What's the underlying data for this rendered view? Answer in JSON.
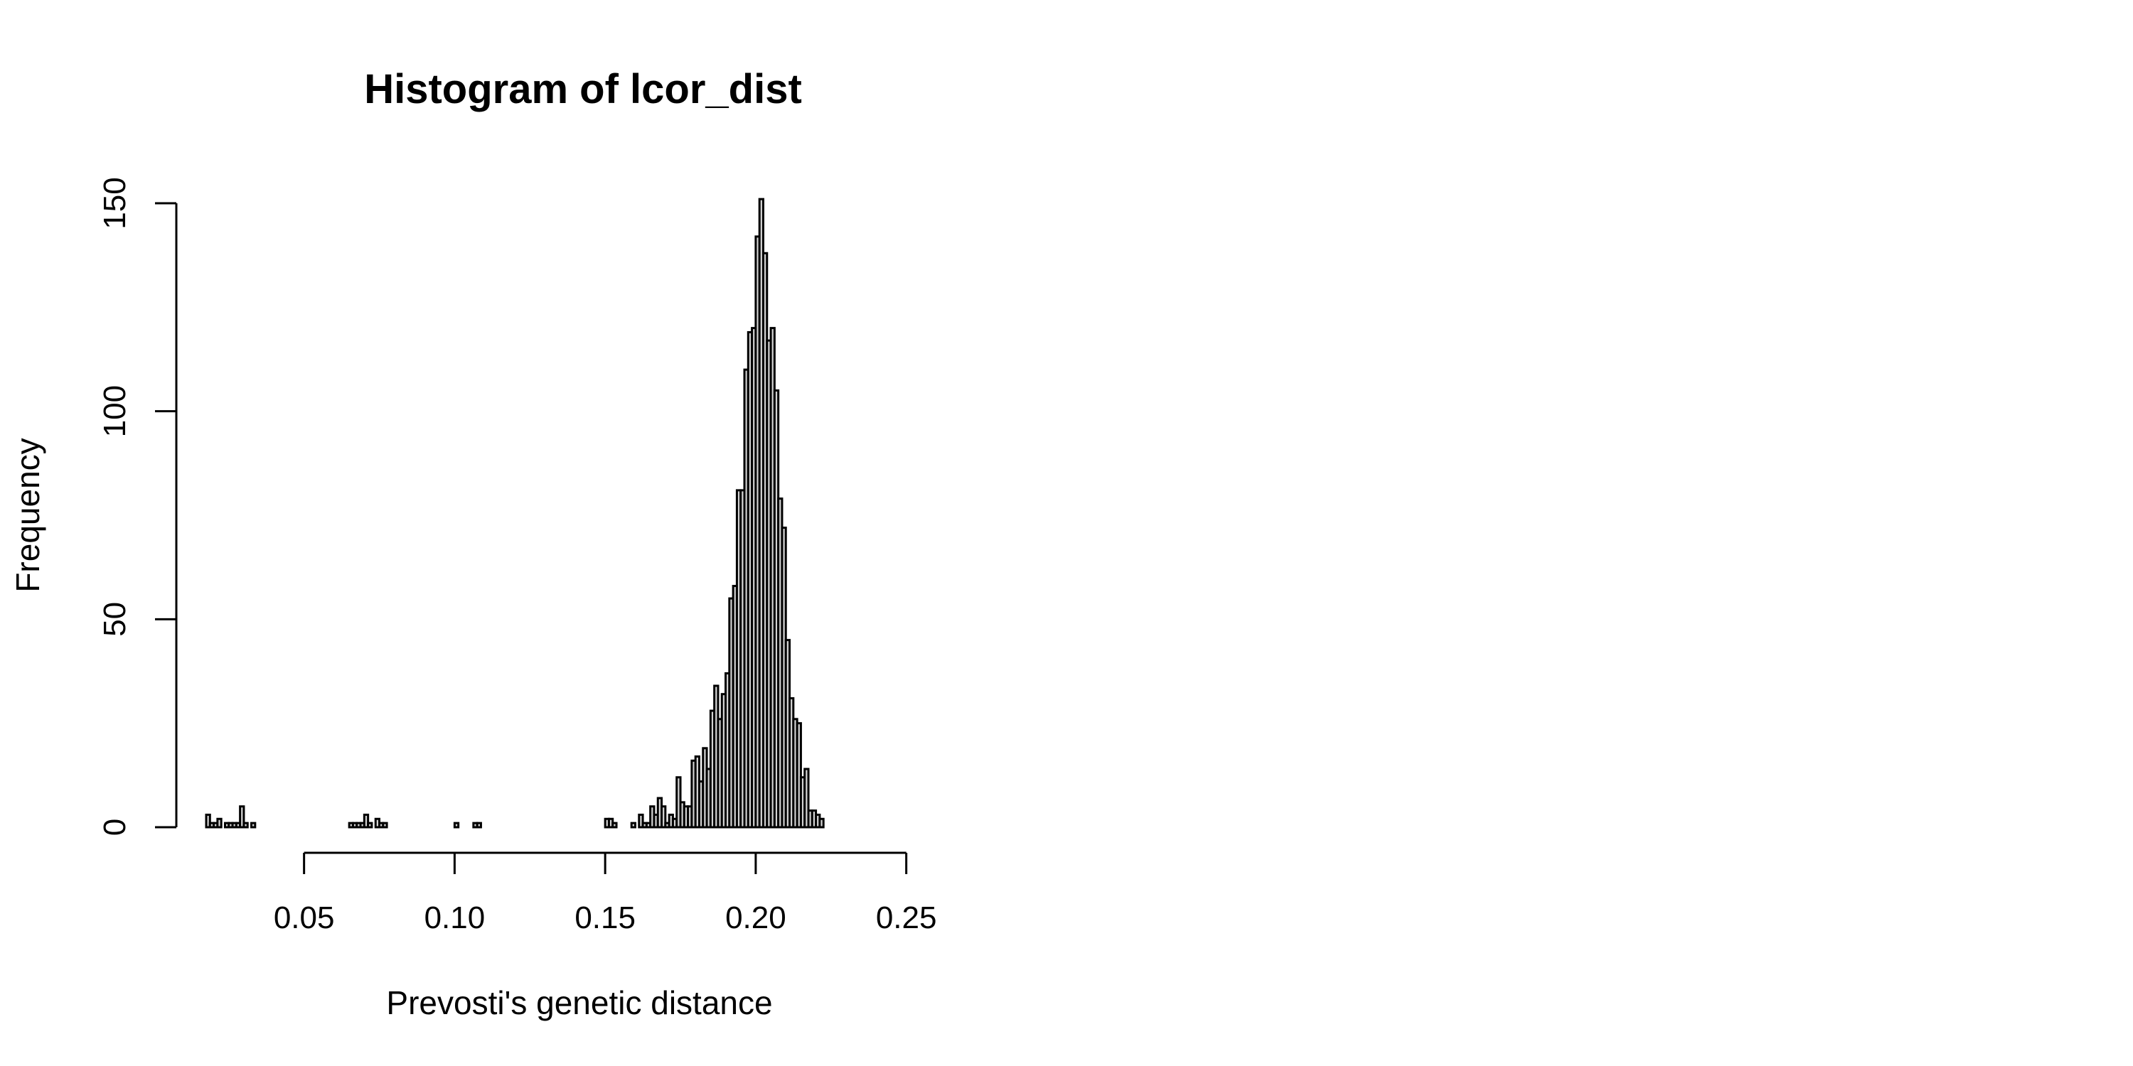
{
  "chart_data": {
    "type": "bar",
    "title": "Histogram of lcor_dist",
    "xlabel": "Prevosti's genetic distance",
    "ylabel": "Frequency",
    "bin_start": 0.0175,
    "bin_width": 0.00125,
    "xlim": [
      0.0175,
      0.2663
    ],
    "ylim": [
      0,
      150
    ],
    "x_ticks": [
      0.05,
      0.1,
      0.15,
      0.2,
      0.25
    ],
    "x_tick_labels": [
      "0.05",
      "0.10",
      "0.15",
      "0.20",
      "0.25"
    ],
    "y_ticks": [
      0,
      50,
      100,
      150
    ],
    "y_tick_labels": [
      "0",
      "50",
      "100",
      "150"
    ],
    "values": [
      3,
      1,
      1,
      2,
      0,
      1,
      1,
      1,
      1,
      5,
      1,
      0,
      1,
      0,
      0,
      0,
      0,
      0,
      0,
      0,
      0,
      0,
      0,
      0,
      0,
      0,
      0,
      0,
      0,
      0,
      0,
      0,
      0,
      0,
      0,
      0,
      0,
      0,
      1,
      1,
      1,
      1,
      3,
      1,
      0,
      2,
      1,
      1,
      0,
      0,
      0,
      0,
      0,
      0,
      0,
      0,
      0,
      0,
      0,
      0,
      0,
      0,
      0,
      0,
      0,
      0,
      1,
      0,
      0,
      0,
      0,
      1,
      1,
      0,
      0,
      0,
      0,
      0,
      0,
      0,
      0,
      0,
      0,
      0,
      0,
      0,
      0,
      0,
      0,
      0,
      0,
      0,
      0,
      0,
      0,
      0,
      0,
      0,
      0,
      0,
      0,
      0,
      0,
      0,
      0,
      0,
      2,
      2,
      1,
      0,
      0,
      0,
      0,
      1,
      0,
      3,
      1,
      1,
      5,
      3,
      7,
      5,
      1,
      3,
      2,
      12,
      6,
      5,
      5,
      16,
      17,
      11,
      19,
      14,
      28,
      34,
      26,
      32,
      37,
      55,
      58,
      81,
      81,
      110,
      119,
      120,
      142,
      151,
      138,
      117,
      120,
      105,
      79,
      72,
      45,
      31,
      26,
      25,
      12,
      14,
      4,
      4,
      3,
      2
    ],
    "grid": false,
    "bar_fill": "#d3d3d3",
    "bar_stroke": "#000000"
  }
}
